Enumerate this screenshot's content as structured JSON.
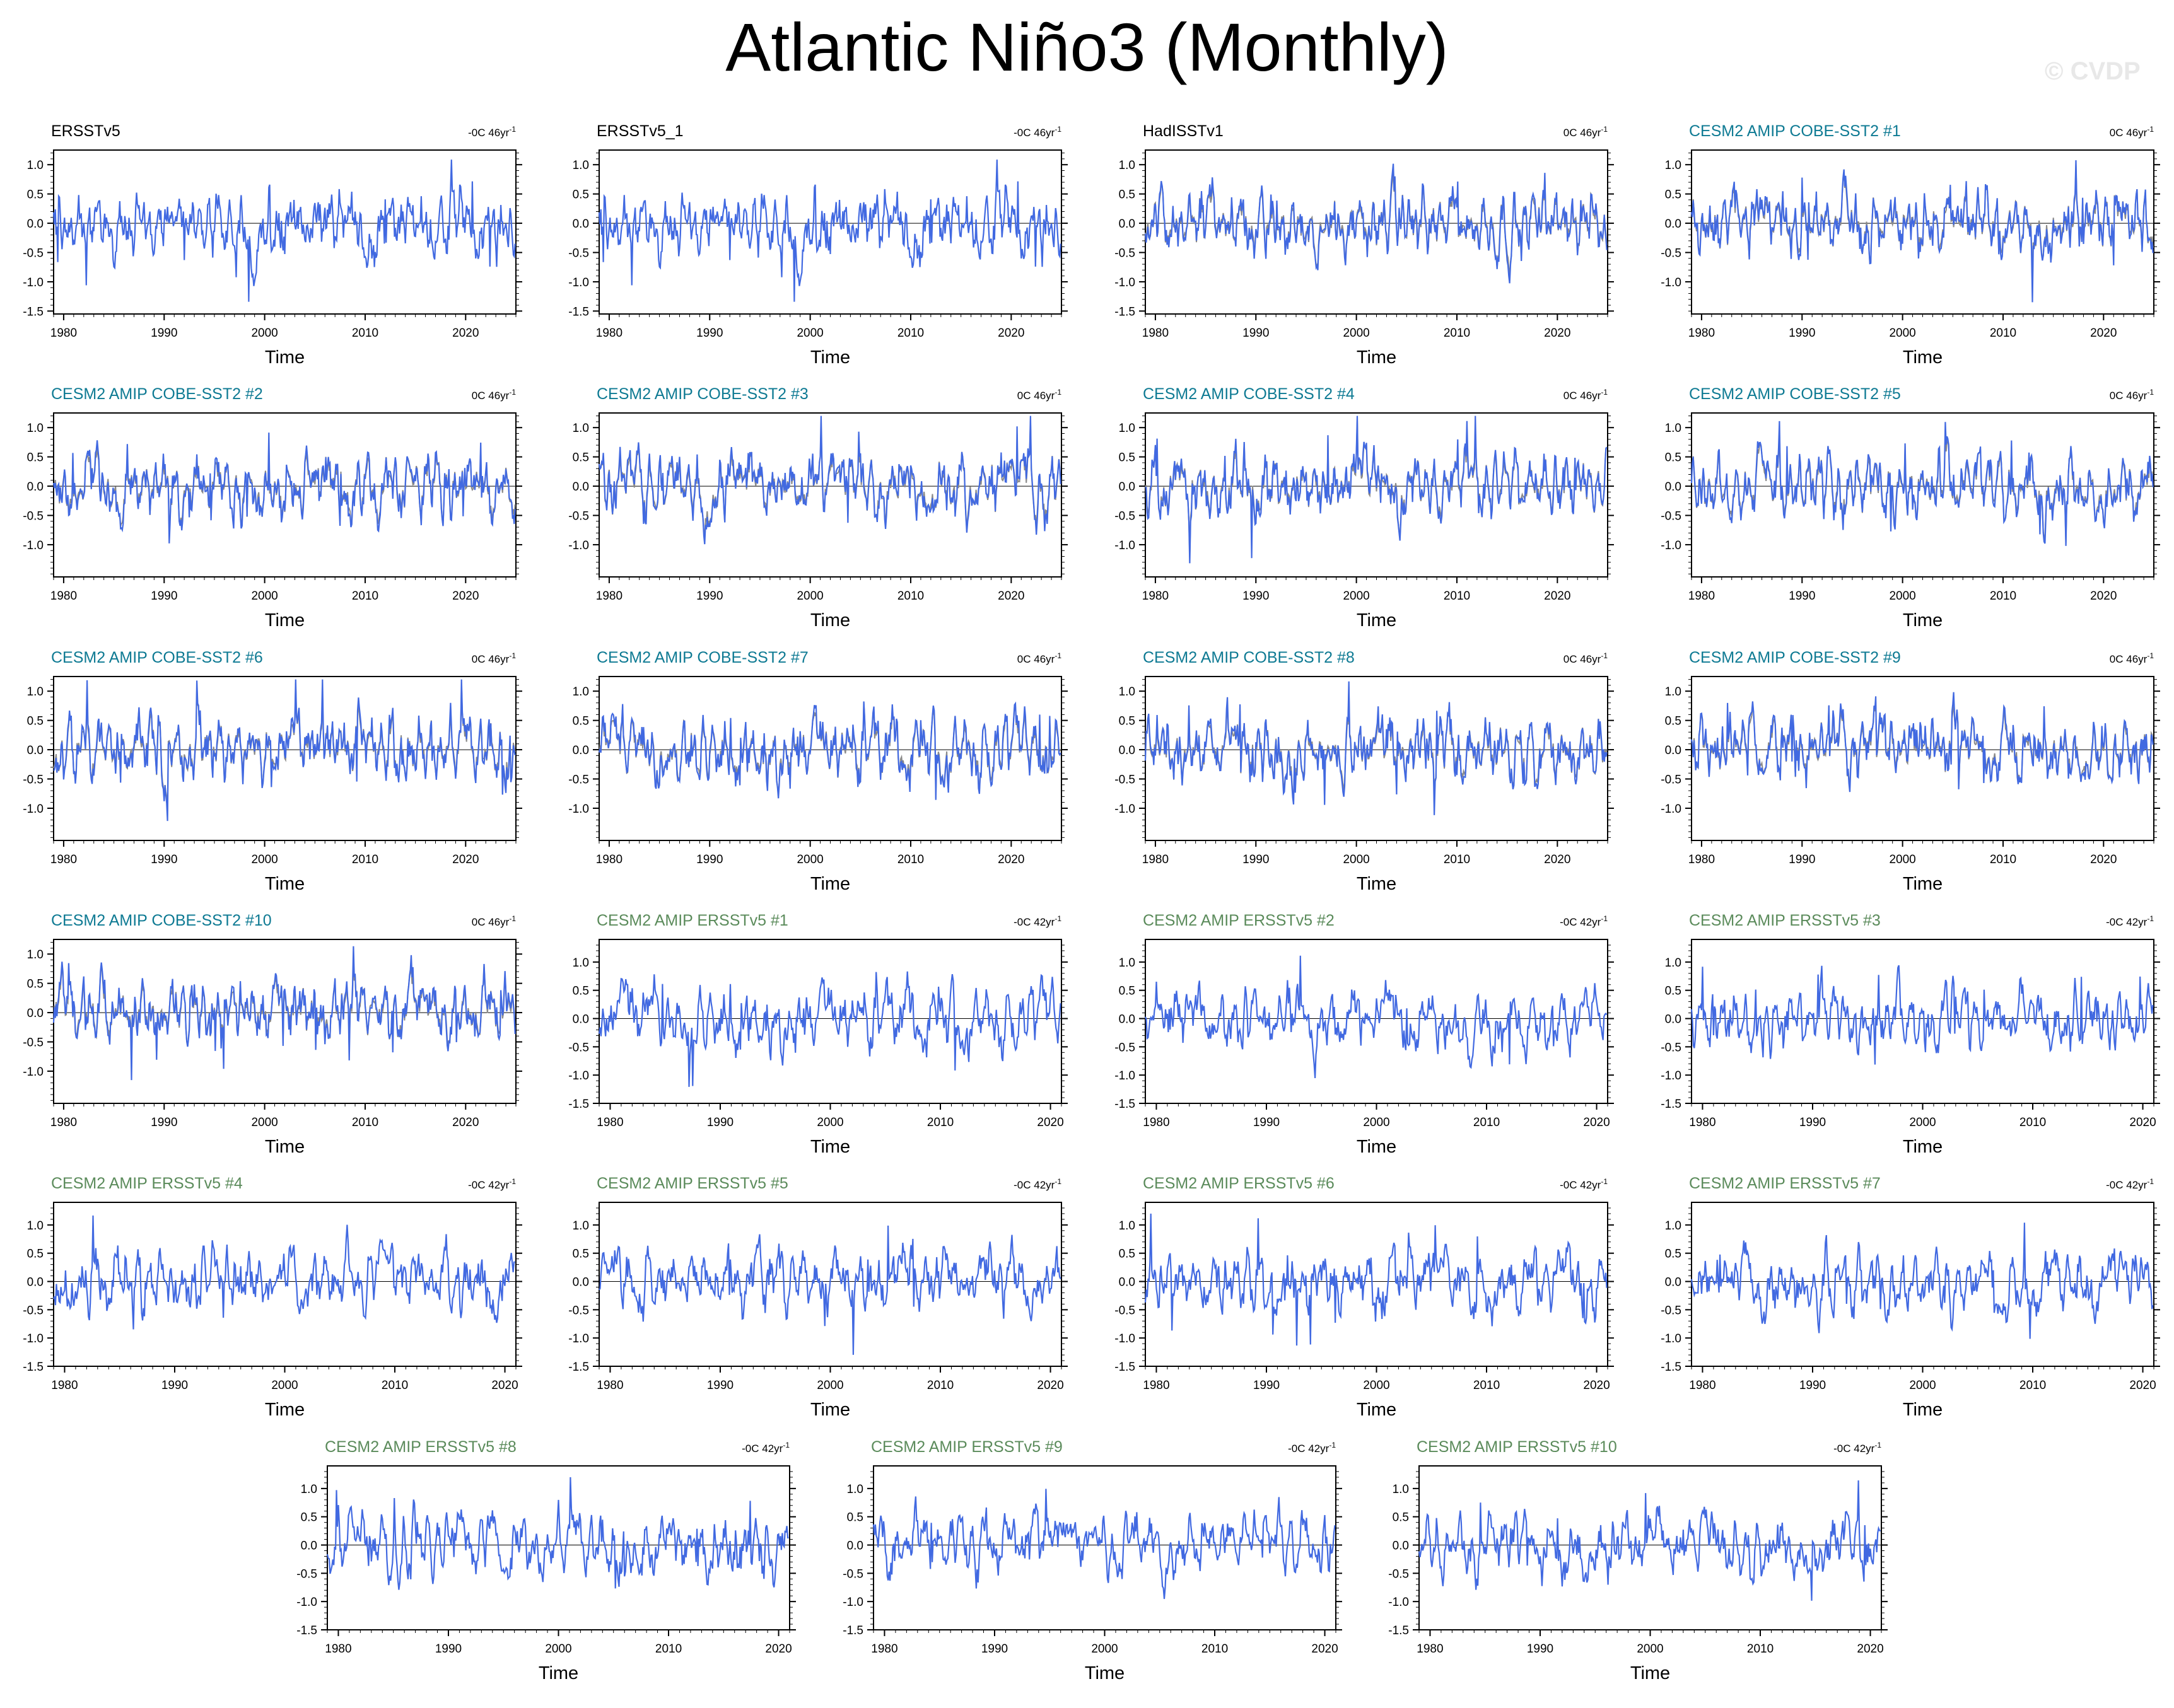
{
  "title": "Atlantic Niño3 (Monthly)",
  "watermark": "© CVDP",
  "colors": {
    "series": "#4169e1",
    "reference": "#8a8a8a",
    "zero_line": "#000000",
    "obs_title": "#000000",
    "cobe_title": "#0e7a93",
    "ersst_title": "#5b8b5b"
  },
  "chart_data": [
    {
      "type": "line",
      "group": "obs",
      "panel_title": "ERSSTv5",
      "trend": "-0C 46yr",
      "xlabel": "Time",
      "x_ticks": [
        1980,
        1990,
        2000,
        2010,
        2020
      ],
      "y_ticks": [
        "1.0",
        "0.5",
        "0.0",
        "-0.5",
        "-1.0",
        "-1.5"
      ],
      "xlim": [
        1979,
        2025
      ],
      "ylim": [
        -1.55,
        1.25
      ],
      "seed": 11
    },
    {
      "type": "line",
      "group": "obs",
      "panel_title": "ERSSTv5_1",
      "trend": "-0C 46yr",
      "xlabel": "Time",
      "x_ticks": [
        1980,
        1990,
        2000,
        2010,
        2020
      ],
      "y_ticks": [
        "1.0",
        "0.5",
        "0.0",
        "-0.5",
        "-1.0",
        "-1.5"
      ],
      "xlim": [
        1979,
        2025
      ],
      "ylim": [
        -1.55,
        1.25
      ],
      "seed": 11
    },
    {
      "type": "line",
      "group": "obs",
      "panel_title": "HadISSTv1",
      "trend": "0C 46yr",
      "xlabel": "Time",
      "x_ticks": [
        1980,
        1990,
        2000,
        2010,
        2020
      ],
      "y_ticks": [
        "1.0",
        "0.5",
        "0.0",
        "-0.5",
        "-1.0",
        "-1.5"
      ],
      "xlim": [
        1979,
        2025
      ],
      "ylim": [
        -1.55,
        1.25
      ],
      "seed": 23,
      "has_reference": true
    },
    {
      "type": "line",
      "group": "cobe",
      "panel_title": "CESM2 AMIP COBE-SST2 #1",
      "trend": "0C 46yr",
      "xlabel": "Time",
      "x_ticks": [
        1980,
        1990,
        2000,
        2010,
        2020
      ],
      "y_ticks": [
        "1.0",
        "0.5",
        "0.0",
        "-0.5",
        "-1.0"
      ],
      "xlim": [
        1979,
        2025
      ],
      "ylim": [
        -1.55,
        1.25
      ],
      "seed": 31,
      "has_reference": true
    },
    {
      "type": "line",
      "group": "cobe",
      "panel_title": "CESM2 AMIP COBE-SST2 #2",
      "trend": "0C 46yr",
      "xlabel": "Time",
      "x_ticks": [
        1980,
        1990,
        2000,
        2010,
        2020
      ],
      "y_ticks": [
        "1.0",
        "0.5",
        "0.0",
        "-0.5",
        "-1.0"
      ],
      "xlim": [
        1979,
        2025
      ],
      "ylim": [
        -1.55,
        1.25
      ],
      "seed": 32,
      "has_reference": true
    },
    {
      "type": "line",
      "group": "cobe",
      "panel_title": "CESM2 AMIP COBE-SST2 #3",
      "trend": "0C 46yr",
      "xlabel": "Time",
      "x_ticks": [
        1980,
        1990,
        2000,
        2010,
        2020
      ],
      "y_ticks": [
        "1.0",
        "0.5",
        "0.0",
        "-0.5",
        "-1.0"
      ],
      "xlim": [
        1979,
        2025
      ],
      "ylim": [
        -1.55,
        1.25
      ],
      "seed": 33,
      "has_reference": true
    },
    {
      "type": "line",
      "group": "cobe",
      "panel_title": "CESM2 AMIP COBE-SST2 #4",
      "trend": "0C 46yr",
      "xlabel": "Time",
      "x_ticks": [
        1980,
        1990,
        2000,
        2010,
        2020
      ],
      "y_ticks": [
        "1.0",
        "0.5",
        "0.0",
        "-0.5",
        "-1.0"
      ],
      "xlim": [
        1979,
        2025
      ],
      "ylim": [
        -1.55,
        1.25
      ],
      "seed": 34,
      "has_reference": true
    },
    {
      "type": "line",
      "group": "cobe",
      "panel_title": "CESM2 AMIP COBE-SST2 #5",
      "trend": "0C 46yr",
      "xlabel": "Time",
      "x_ticks": [
        1980,
        1990,
        2000,
        2010,
        2020
      ],
      "y_ticks": [
        "1.0",
        "0.5",
        "0.0",
        "-0.5",
        "-1.0"
      ],
      "xlim": [
        1979,
        2025
      ],
      "ylim": [
        -1.55,
        1.25
      ],
      "seed": 35,
      "has_reference": true
    },
    {
      "type": "line",
      "group": "cobe",
      "panel_title": "CESM2 AMIP COBE-SST2 #6",
      "trend": "0C 46yr",
      "xlabel": "Time",
      "x_ticks": [
        1980,
        1990,
        2000,
        2010,
        2020
      ],
      "y_ticks": [
        "1.0",
        "0.5",
        "0.0",
        "-0.5",
        "-1.0"
      ],
      "xlim": [
        1979,
        2025
      ],
      "ylim": [
        -1.55,
        1.25
      ],
      "seed": 36,
      "has_reference": true
    },
    {
      "type": "line",
      "group": "cobe",
      "panel_title": "CESM2 AMIP COBE-SST2 #7",
      "trend": "0C 46yr",
      "xlabel": "Time",
      "x_ticks": [
        1980,
        1990,
        2000,
        2010,
        2020
      ],
      "y_ticks": [
        "1.0",
        "0.5",
        "0.0",
        "-0.5",
        "-1.0"
      ],
      "xlim": [
        1979,
        2025
      ],
      "ylim": [
        -1.55,
        1.25
      ],
      "seed": 37,
      "has_reference": true
    },
    {
      "type": "line",
      "group": "cobe",
      "panel_title": "CESM2 AMIP COBE-SST2 #8",
      "trend": "0C 46yr",
      "xlabel": "Time",
      "x_ticks": [
        1980,
        1990,
        2000,
        2010,
        2020
      ],
      "y_ticks": [
        "1.0",
        "0.5",
        "0.0",
        "-0.5",
        "-1.0"
      ],
      "xlim": [
        1979,
        2025
      ],
      "ylim": [
        -1.55,
        1.25
      ],
      "seed": 38,
      "has_reference": true
    },
    {
      "type": "line",
      "group": "cobe",
      "panel_title": "CESM2 AMIP COBE-SST2 #9",
      "trend": "0C 46yr",
      "xlabel": "Time",
      "x_ticks": [
        1980,
        1990,
        2000,
        2010,
        2020
      ],
      "y_ticks": [
        "1.0",
        "0.5",
        "0.0",
        "-0.5",
        "-1.0"
      ],
      "xlim": [
        1979,
        2025
      ],
      "ylim": [
        -1.55,
        1.25
      ],
      "seed": 39,
      "has_reference": true
    },
    {
      "type": "line",
      "group": "cobe",
      "panel_title": "CESM2 AMIP COBE-SST2 #10",
      "trend": "0C 46yr",
      "xlabel": "Time",
      "x_ticks": [
        1980,
        1990,
        2000,
        2010,
        2020
      ],
      "y_ticks": [
        "1.0",
        "0.5",
        "0.0",
        "-0.5",
        "-1.0"
      ],
      "xlim": [
        1979,
        2025
      ],
      "ylim": [
        -1.55,
        1.25
      ],
      "seed": 40,
      "has_reference": true
    },
    {
      "type": "line",
      "group": "ersst",
      "panel_title": "CESM2 AMIP ERSSTv5 #1",
      "trend": "-0C 42yr",
      "xlabel": "Time",
      "x_ticks": [
        1980,
        1990,
        2000,
        2010,
        2020
      ],
      "y_ticks": [
        "1.0",
        "0.5",
        "0.0",
        "-0.5",
        "-1.0",
        "-1.5"
      ],
      "xlim": [
        1979,
        2021
      ],
      "ylim": [
        -1.5,
        1.4
      ],
      "seed": 51
    },
    {
      "type": "line",
      "group": "ersst",
      "panel_title": "CESM2 AMIP ERSSTv5 #2",
      "trend": "-0C 42yr",
      "xlabel": "Time",
      "x_ticks": [
        1980,
        1990,
        2000,
        2010,
        2020
      ],
      "y_ticks": [
        "1.0",
        "0.5",
        "0.0",
        "-0.5",
        "-1.0",
        "-1.5"
      ],
      "xlim": [
        1979,
        2021
      ],
      "ylim": [
        -1.5,
        1.4
      ],
      "seed": 52
    },
    {
      "type": "line",
      "group": "ersst",
      "panel_title": "CESM2 AMIP ERSSTv5 #3",
      "trend": "-0C 42yr",
      "xlabel": "Time",
      "x_ticks": [
        1980,
        1990,
        2000,
        2010,
        2020
      ],
      "y_ticks": [
        "1.0",
        "0.5",
        "0.0",
        "-0.5",
        "-1.0",
        "-1.5"
      ],
      "xlim": [
        1979,
        2021
      ],
      "ylim": [
        -1.5,
        1.4
      ],
      "seed": 53
    },
    {
      "type": "line",
      "group": "ersst",
      "panel_title": "CESM2 AMIP ERSSTv5 #4",
      "trend": "-0C 42yr",
      "xlabel": "Time",
      "x_ticks": [
        1980,
        1990,
        2000,
        2010,
        2020
      ],
      "y_ticks": [
        "1.0",
        "0.5",
        "0.0",
        "-0.5",
        "-1.0",
        "-1.5"
      ],
      "xlim": [
        1979,
        2021
      ],
      "ylim": [
        -1.5,
        1.4
      ],
      "seed": 54
    },
    {
      "type": "line",
      "group": "ersst",
      "panel_title": "CESM2 AMIP ERSSTv5 #5",
      "trend": "-0C 42yr",
      "xlabel": "Time",
      "x_ticks": [
        1980,
        1990,
        2000,
        2010,
        2020
      ],
      "y_ticks": [
        "1.0",
        "0.5",
        "0.0",
        "-0.5",
        "-1.0",
        "-1.5"
      ],
      "xlim": [
        1979,
        2021
      ],
      "ylim": [
        -1.5,
        1.4
      ],
      "seed": 55
    },
    {
      "type": "line",
      "group": "ersst",
      "panel_title": "CESM2 AMIP ERSSTv5 #6",
      "trend": "-0C 42yr",
      "xlabel": "Time",
      "x_ticks": [
        1980,
        1990,
        2000,
        2010,
        2020
      ],
      "y_ticks": [
        "1.0",
        "0.5",
        "0.0",
        "-0.5",
        "-1.0",
        "-1.5"
      ],
      "xlim": [
        1979,
        2021
      ],
      "ylim": [
        -1.5,
        1.4
      ],
      "seed": 56
    },
    {
      "type": "line",
      "group": "ersst",
      "panel_title": "CESM2 AMIP ERSSTv5 #7",
      "trend": "-0C 42yr",
      "xlabel": "Time",
      "x_ticks": [
        1980,
        1990,
        2000,
        2010,
        2020
      ],
      "y_ticks": [
        "1.0",
        "0.5",
        "0.0",
        "-0.5",
        "-1.0",
        "-1.5"
      ],
      "xlim": [
        1979,
        2021
      ],
      "ylim": [
        -1.5,
        1.4
      ],
      "seed": 57
    },
    {
      "type": "line",
      "group": "ersst",
      "panel_title": "CESM2 AMIP ERSSTv5 #8",
      "trend": "-0C 42yr",
      "xlabel": "Time",
      "x_ticks": [
        1980,
        1990,
        2000,
        2010,
        2020
      ],
      "y_ticks": [
        "1.0",
        "0.5",
        "0.0",
        "-0.5",
        "-1.0",
        "-1.5"
      ],
      "xlim": [
        1979,
        2021
      ],
      "ylim": [
        -1.5,
        1.4
      ],
      "seed": 58
    },
    {
      "type": "line",
      "group": "ersst",
      "panel_title": "CESM2 AMIP ERSSTv5 #9",
      "trend": "-0C 42yr",
      "xlabel": "Time",
      "x_ticks": [
        1980,
        1990,
        2000,
        2010,
        2020
      ],
      "y_ticks": [
        "1.0",
        "0.5",
        "0.0",
        "-0.5",
        "-1.0",
        "-1.5"
      ],
      "xlim": [
        1979,
        2021
      ],
      "ylim": [
        -1.5,
        1.4
      ],
      "seed": 59
    },
    {
      "type": "line",
      "group": "ersst",
      "panel_title": "CESM2 AMIP ERSSTv5 #10",
      "trend": "-0C 42yr",
      "xlabel": "Time",
      "x_ticks": [
        1980,
        1990,
        2000,
        2010,
        2020
      ],
      "y_ticks": [
        "1.0",
        "0.5",
        "0.0",
        "-0.5",
        "-1.0",
        "-1.5"
      ],
      "xlim": [
        1979,
        2021
      ],
      "ylim": [
        -1.5,
        1.4
      ],
      "seed": 60
    }
  ]
}
